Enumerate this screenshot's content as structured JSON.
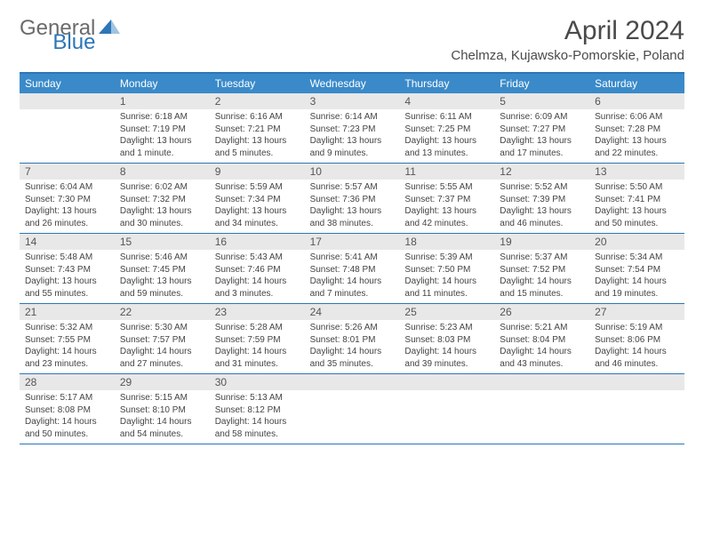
{
  "brand": {
    "part1": "General",
    "part2": "Blue"
  },
  "title": "April 2024",
  "location": "Chelmza, Kujawsko-Pomorskie, Poland",
  "colors": {
    "header_bar": "#3a8ac9",
    "border": "#2d76b8",
    "daynum_bg": "#e8e8e8",
    "text_dark": "#4a4a4a",
    "text_cell": "#444444",
    "logo_gray": "#6b6b6b",
    "logo_blue": "#2d76b8",
    "background": "#ffffff"
  },
  "fonts": {
    "title_size": 30,
    "location_size": 15,
    "logo_size": 24,
    "weekday_size": 12,
    "daynum_size": 12,
    "cell_size": 10
  },
  "weekdays": [
    "Sunday",
    "Monday",
    "Tuesday",
    "Wednesday",
    "Thursday",
    "Friday",
    "Saturday"
  ],
  "weeks": [
    [
      null,
      {
        "n": "1",
        "sunrise": "6:18 AM",
        "sunset": "7:19 PM",
        "daylight": "13 hours and 1 minute."
      },
      {
        "n": "2",
        "sunrise": "6:16 AM",
        "sunset": "7:21 PM",
        "daylight": "13 hours and 5 minutes."
      },
      {
        "n": "3",
        "sunrise": "6:14 AM",
        "sunset": "7:23 PM",
        "daylight": "13 hours and 9 minutes."
      },
      {
        "n": "4",
        "sunrise": "6:11 AM",
        "sunset": "7:25 PM",
        "daylight": "13 hours and 13 minutes."
      },
      {
        "n": "5",
        "sunrise": "6:09 AM",
        "sunset": "7:27 PM",
        "daylight": "13 hours and 17 minutes."
      },
      {
        "n": "6",
        "sunrise": "6:06 AM",
        "sunset": "7:28 PM",
        "daylight": "13 hours and 22 minutes."
      }
    ],
    [
      {
        "n": "7",
        "sunrise": "6:04 AM",
        "sunset": "7:30 PM",
        "daylight": "13 hours and 26 minutes."
      },
      {
        "n": "8",
        "sunrise": "6:02 AM",
        "sunset": "7:32 PM",
        "daylight": "13 hours and 30 minutes."
      },
      {
        "n": "9",
        "sunrise": "5:59 AM",
        "sunset": "7:34 PM",
        "daylight": "13 hours and 34 minutes."
      },
      {
        "n": "10",
        "sunrise": "5:57 AM",
        "sunset": "7:36 PM",
        "daylight": "13 hours and 38 minutes."
      },
      {
        "n": "11",
        "sunrise": "5:55 AM",
        "sunset": "7:37 PM",
        "daylight": "13 hours and 42 minutes."
      },
      {
        "n": "12",
        "sunrise": "5:52 AM",
        "sunset": "7:39 PM",
        "daylight": "13 hours and 46 minutes."
      },
      {
        "n": "13",
        "sunrise": "5:50 AM",
        "sunset": "7:41 PM",
        "daylight": "13 hours and 50 minutes."
      }
    ],
    [
      {
        "n": "14",
        "sunrise": "5:48 AM",
        "sunset": "7:43 PM",
        "daylight": "13 hours and 55 minutes."
      },
      {
        "n": "15",
        "sunrise": "5:46 AM",
        "sunset": "7:45 PM",
        "daylight": "13 hours and 59 minutes."
      },
      {
        "n": "16",
        "sunrise": "5:43 AM",
        "sunset": "7:46 PM",
        "daylight": "14 hours and 3 minutes."
      },
      {
        "n": "17",
        "sunrise": "5:41 AM",
        "sunset": "7:48 PM",
        "daylight": "14 hours and 7 minutes."
      },
      {
        "n": "18",
        "sunrise": "5:39 AM",
        "sunset": "7:50 PM",
        "daylight": "14 hours and 11 minutes."
      },
      {
        "n": "19",
        "sunrise": "5:37 AM",
        "sunset": "7:52 PM",
        "daylight": "14 hours and 15 minutes."
      },
      {
        "n": "20",
        "sunrise": "5:34 AM",
        "sunset": "7:54 PM",
        "daylight": "14 hours and 19 minutes."
      }
    ],
    [
      {
        "n": "21",
        "sunrise": "5:32 AM",
        "sunset": "7:55 PM",
        "daylight": "14 hours and 23 minutes."
      },
      {
        "n": "22",
        "sunrise": "5:30 AM",
        "sunset": "7:57 PM",
        "daylight": "14 hours and 27 minutes."
      },
      {
        "n": "23",
        "sunrise": "5:28 AM",
        "sunset": "7:59 PM",
        "daylight": "14 hours and 31 minutes."
      },
      {
        "n": "24",
        "sunrise": "5:26 AM",
        "sunset": "8:01 PM",
        "daylight": "14 hours and 35 minutes."
      },
      {
        "n": "25",
        "sunrise": "5:23 AM",
        "sunset": "8:03 PM",
        "daylight": "14 hours and 39 minutes."
      },
      {
        "n": "26",
        "sunrise": "5:21 AM",
        "sunset": "8:04 PM",
        "daylight": "14 hours and 43 minutes."
      },
      {
        "n": "27",
        "sunrise": "5:19 AM",
        "sunset": "8:06 PM",
        "daylight": "14 hours and 46 minutes."
      }
    ],
    [
      {
        "n": "28",
        "sunrise": "5:17 AM",
        "sunset": "8:08 PM",
        "daylight": "14 hours and 50 minutes."
      },
      {
        "n": "29",
        "sunrise": "5:15 AM",
        "sunset": "8:10 PM",
        "daylight": "14 hours and 54 minutes."
      },
      {
        "n": "30",
        "sunrise": "5:13 AM",
        "sunset": "8:12 PM",
        "daylight": "14 hours and 58 minutes."
      },
      null,
      null,
      null,
      null
    ]
  ],
  "labels": {
    "sunrise": "Sunrise:",
    "sunset": "Sunset:",
    "daylight": "Daylight:"
  }
}
